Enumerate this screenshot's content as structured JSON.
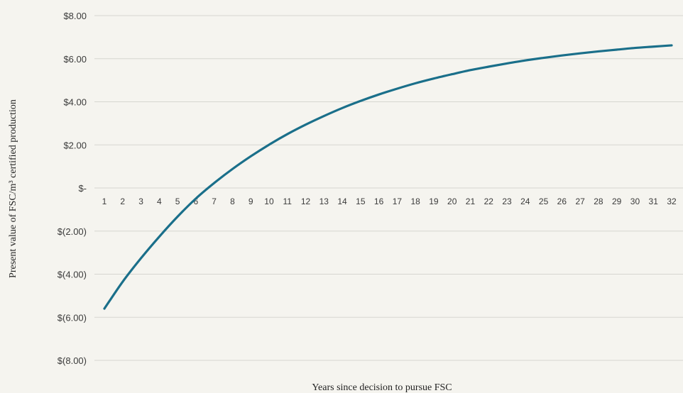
{
  "chart_data": {
    "type": "line",
    "title": "",
    "xlabel": "Years since decision to pursue FSC",
    "ylabel": "Present value of FSC/m³ certified production",
    "x": [
      1,
      2,
      3,
      4,
      5,
      6,
      7,
      8,
      9,
      10,
      11,
      12,
      13,
      14,
      15,
      16,
      17,
      18,
      19,
      20,
      21,
      22,
      23,
      24,
      25,
      26,
      27,
      28,
      29,
      30,
      31,
      32
    ],
    "series": [
      {
        "name": "",
        "color": "#1a6f8a",
        "values": [
          -5.6,
          -4.35,
          -3.26,
          -2.26,
          -1.33,
          -0.49,
          0.23,
          0.88,
          1.47,
          2.01,
          2.5,
          2.94,
          3.34,
          3.71,
          4.04,
          4.34,
          4.61,
          4.86,
          5.08,
          5.28,
          5.47,
          5.63,
          5.78,
          5.92,
          6.04,
          6.15,
          6.25,
          6.34,
          6.42,
          6.5,
          6.56,
          6.62
        ]
      }
    ],
    "ylim": [
      -8,
      8
    ],
    "y_ticks": [
      8,
      6,
      4,
      2,
      0,
      -2,
      -4,
      -6,
      -8
    ],
    "y_tick_labels": [
      "$8.00",
      "$6.00",
      "$4.00",
      "$2.00",
      "$-",
      "$(2.00)",
      "$(4.00)",
      "$(6.00)",
      "$(8.00)"
    ],
    "x_tick_labels": [
      "1",
      "2",
      "3",
      "4",
      "5",
      "6",
      "7",
      "8",
      "9",
      "10",
      "11",
      "12",
      "13",
      "14",
      "15",
      "16",
      "17",
      "18",
      "19",
      "20",
      "21",
      "22",
      "23",
      "24",
      "25",
      "26",
      "27",
      "28",
      "29",
      "30",
      "31",
      "32"
    ],
    "grid": true,
    "legend": "none"
  }
}
